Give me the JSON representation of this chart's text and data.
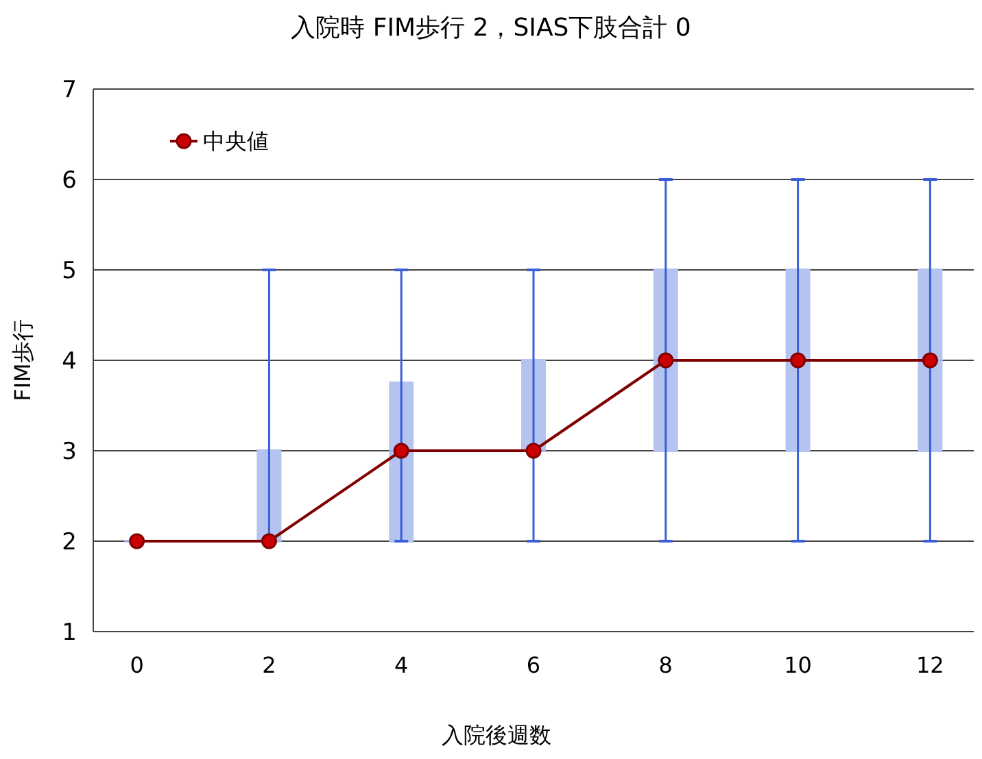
{
  "chart_data": {
    "type": "box",
    "title": "入院時 FIM歩行 2，SIAS下肢合計 0",
    "xlabel": "入院後週数",
    "ylabel": "FIM歩行",
    "categories": [
      "0",
      "2",
      "4",
      "6",
      "8",
      "10",
      "12"
    ],
    "color": "#b5c3f0",
    "boxes": [
      {
        "low": 2,
        "q1": 2,
        "median": 2,
        "q3": 2,
        "high": 2
      },
      {
        "low": 2,
        "q1": 2,
        "median": 2,
        "q3": 3,
        "high": 5
      },
      {
        "low": 2,
        "q1": 2,
        "median": 3,
        "q3": 3.75,
        "high": 5
      },
      {
        "low": 2,
        "q1": 3,
        "median": 3,
        "q3": 4,
        "high": 5
      },
      {
        "low": 2,
        "q1": 3,
        "median": 4,
        "q3": 5,
        "high": 6
      },
      {
        "low": 2,
        "q1": 3,
        "median": 4,
        "q3": 5,
        "high": 6
      },
      {
        "low": 2,
        "q1": 3,
        "median": 4,
        "q3": 5,
        "high": 6
      }
    ],
    "series": [
      {
        "type": "line",
        "name": "中央値",
        "color": "#800000",
        "values": [
          2,
          2,
          3,
          3,
          4,
          4,
          4
        ]
      }
    ],
    "ylim": [
      1,
      7
    ],
    "yticks": [
      1,
      2,
      3,
      4,
      5,
      6,
      7
    ],
    "grid": "y",
    "legend": "top left",
    "marker": "circle",
    "line_style": "solid"
  }
}
